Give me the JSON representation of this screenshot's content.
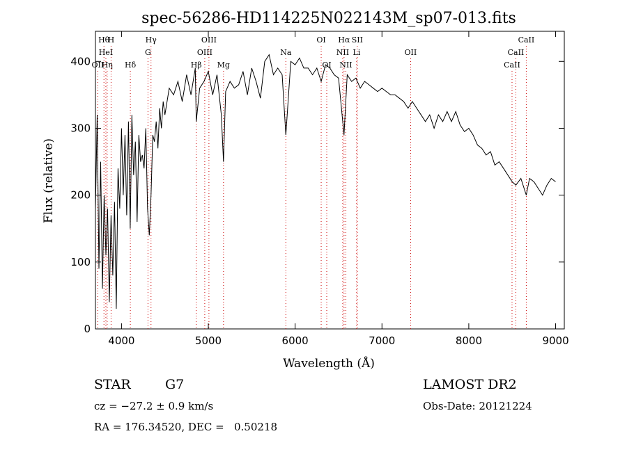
{
  "chart_data": {
    "type": "line",
    "title": "spec-56286-HD114225N022143M_sp07-013.fits",
    "xlabel": "Wavelength (Å)",
    "ylabel": "Flux (relative)",
    "xlim": [
      3700,
      9100
    ],
    "ylim": [
      0,
      445
    ],
    "x_ticks": [
      4000,
      5000,
      6000,
      7000,
      8000,
      9000
    ],
    "y_ticks": [
      0,
      100,
      200,
      300,
      400
    ],
    "grid": false,
    "line_color": "#000000",
    "marker_color": "#cc0000",
    "series": [
      {
        "x": [
          3700,
          3720,
          3740,
          3760,
          3780,
          3800,
          3820,
          3840,
          3860,
          3880,
          3900,
          3920,
          3940,
          3960,
          3980,
          4000,
          4020,
          4040,
          4060,
          4080,
          4100,
          4120,
          4140,
          4160,
          4180,
          4200,
          4220,
          4240,
          4260,
          4280,
          4300,
          4320,
          4340,
          4360,
          4380,
          4400,
          4420,
          4440,
          4460,
          4480,
          4500,
          4550,
          4600,
          4650,
          4700,
          4750,
          4800,
          4850,
          4861,
          4900,
          4950,
          5000,
          5050,
          5100,
          5150,
          5175,
          5200,
          5250,
          5300,
          5350,
          5400,
          5450,
          5500,
          5550,
          5600,
          5650,
          5700,
          5750,
          5800,
          5850,
          5893,
          5950,
          6000,
          6050,
          6100,
          6150,
          6200,
          6250,
          6300,
          6350,
          6400,
          6450,
          6500,
          6563,
          6600,
          6650,
          6700,
          6750,
          6800,
          6850,
          6900,
          6950,
          7000,
          7050,
          7100,
          7150,
          7200,
          7250,
          7300,
          7350,
          7400,
          7450,
          7500,
          7550,
          7600,
          7650,
          7700,
          7750,
          7800,
          7850,
          7900,
          7950,
          8000,
          8050,
          8100,
          8150,
          8200,
          8250,
          8300,
          8350,
          8400,
          8450,
          8500,
          8542,
          8600,
          8662,
          8700,
          8750,
          8800,
          8850,
          8900,
          8950,
          9000
        ],
        "y": [
          180,
          320,
          90,
          250,
          60,
          200,
          110,
          180,
          40,
          170,
          80,
          190,
          30,
          240,
          180,
          300,
          200,
          290,
          170,
          310,
          150,
          320,
          230,
          280,
          160,
          290,
          250,
          260,
          240,
          300,
          180,
          140,
          200,
          290,
          280,
          310,
          270,
          330,
          300,
          340,
          320,
          360,
          350,
          370,
          340,
          380,
          350,
          390,
          310,
          360,
          370,
          385,
          350,
          380,
          320,
          250,
          355,
          370,
          360,
          365,
          385,
          350,
          390,
          370,
          345,
          400,
          410,
          380,
          390,
          380,
          290,
          400,
          395,
          405,
          390,
          390,
          380,
          390,
          370,
          395,
          390,
          380,
          375,
          290,
          380,
          370,
          375,
          360,
          370,
          365,
          360,
          355,
          360,
          355,
          350,
          350,
          345,
          340,
          330,
          340,
          330,
          320,
          310,
          320,
          300,
          320,
          310,
          325,
          310,
          325,
          305,
          295,
          300,
          290,
          275,
          270,
          260,
          265,
          245,
          250,
          240,
          230,
          220,
          215,
          225,
          200,
          225,
          220,
          210,
          200,
          215,
          225,
          220
        ]
      }
    ],
    "markers": [
      {
        "label": "Hθ",
        "x": 3798,
        "row": 1
      },
      {
        "label": "H",
        "x": 3880,
        "row": 1
      },
      {
        "label": "HeI",
        "x": 3820,
        "row": 2
      },
      {
        "label": "OII",
        "x": 3727,
        "row": 3
      },
      {
        "label": "Hη",
        "x": 3835,
        "row": 3
      },
      {
        "label": "Hδ",
        "x": 4102,
        "row": 3
      },
      {
        "label": "Hγ",
        "x": 4340,
        "row": 1
      },
      {
        "label": "G",
        "x": 4305,
        "row": 2
      },
      {
        "label": "Hβ",
        "x": 4861,
        "row": 3
      },
      {
        "label": "OIII",
        "x": 5007,
        "row": 1
      },
      {
        "label": "OIII",
        "x": 4959,
        "row": 2
      },
      {
        "label": "Mg",
        "x": 5175,
        "row": 3
      },
      {
        "label": "Na",
        "x": 5893,
        "row": 2
      },
      {
        "label": "OI",
        "x": 6300,
        "row": 1
      },
      {
        "label": "OI",
        "x": 6364,
        "row": 3
      },
      {
        "label": "Hα",
        "x": 6563,
        "row": 1
      },
      {
        "label": "SII",
        "x": 6716,
        "row": 1
      },
      {
        "label": "NII",
        "x": 6548,
        "row": 2
      },
      {
        "label": "Li",
        "x": 6708,
        "row": 2
      },
      {
        "label": "NII",
        "x": 6584,
        "row": 3
      },
      {
        "label": "OII",
        "x": 7330,
        "row": 2
      },
      {
        "label": "CaII",
        "x": 8662,
        "row": 1
      },
      {
        "label": "CaII",
        "x": 8542,
        "row": 2
      },
      {
        "label": "CaII",
        "x": 8498,
        "row": 3
      }
    ]
  },
  "info": {
    "object_class": "STAR",
    "subclass": "G7",
    "cz": "cz = −27.2 ± 0.9 km/s",
    "radec": "RA = 176.34520, DEC =   0.50218",
    "survey": "LAMOST DR2",
    "obs_date": "Obs-Date: 20121224"
  }
}
